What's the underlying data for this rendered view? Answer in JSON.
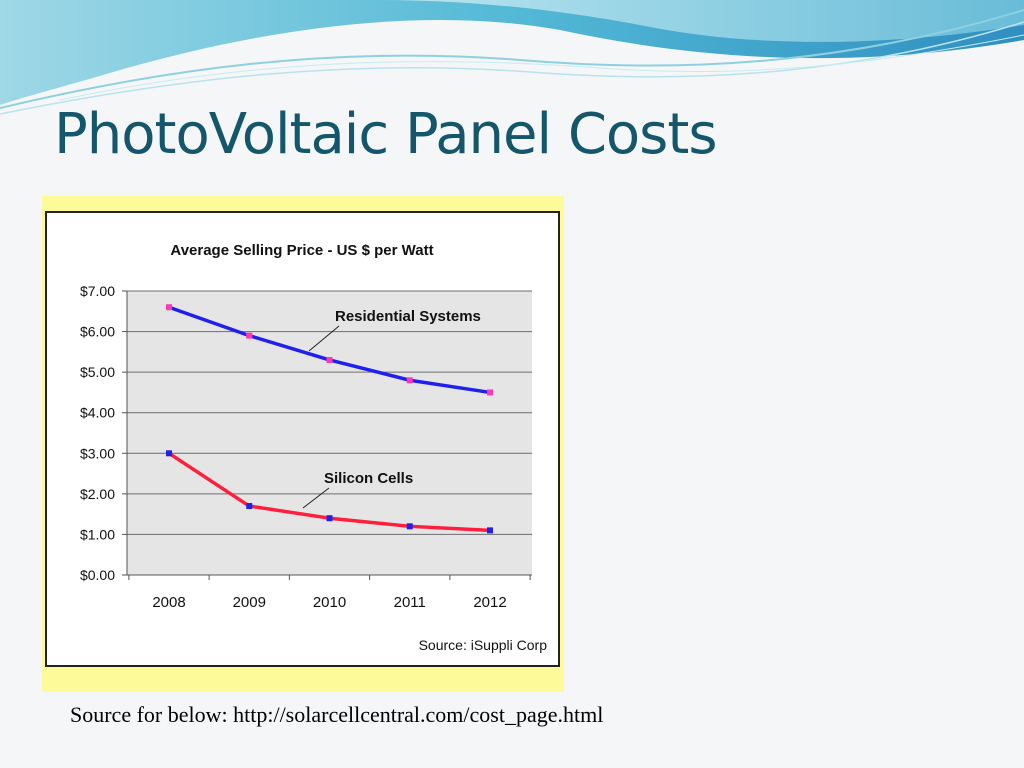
{
  "slide": {
    "title": "PhotoVoltaic Panel Costs",
    "source_caption": "Source for below: http://solarcellcentral.com/cost_page.html"
  },
  "colors": {
    "title": "#14566b",
    "chart_frame": "#fdfa9a",
    "plot_area": "#e5e5e5",
    "residential_line": "#2020ee",
    "residential_markers": "#ff3ab0",
    "silicon_line": "#ff1e3c",
    "silicon_markers": "#2020ee"
  },
  "chart_data": {
    "type": "line",
    "title": "Average Selling Price - US $ per Watt",
    "categories": [
      "2008",
      "2009",
      "2010",
      "2011",
      "2012"
    ],
    "series": [
      {
        "name": "Residential Systems",
        "values": [
          6.6,
          5.9,
          5.3,
          4.8,
          4.5
        ]
      },
      {
        "name": "Silicon Cells",
        "values": [
          3.0,
          1.7,
          1.4,
          1.2,
          1.1
        ]
      }
    ],
    "ylim": [
      0,
      7
    ],
    "yticks": [
      0,
      1,
      2,
      3,
      4,
      5,
      6,
      7
    ],
    "ytick_labels": [
      "$0.00",
      "$1.00",
      "$2.00",
      "$3.00",
      "$4.00",
      "$5.00",
      "$6.00",
      "$7.00"
    ],
    "grid": true,
    "legend": "inline annotations with pointer lines",
    "source_note": "Source: iSuppli Corp"
  }
}
